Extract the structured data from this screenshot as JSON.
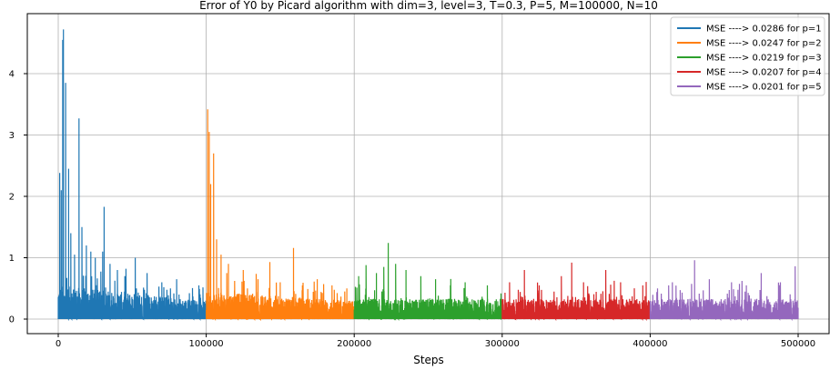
{
  "chart_data": {
    "type": "line",
    "title": "Error of Y0 by Picard algorithm with dim=3, level=3, T=0.3, P=5, M=100000, N=10",
    "xlabel": "Steps",
    "ylabel": "",
    "xlim": [
      -25000,
      520000
    ],
    "ylim": [
      -0.25,
      4.85
    ],
    "xticks": [
      0,
      100000,
      200000,
      300000,
      400000,
      500000
    ],
    "yticks": [
      0,
      1,
      2,
      3,
      4
    ],
    "grid": true,
    "legend_position": "top-right",
    "series": [
      {
        "name": "MSE ----> 0.0286 for p=1",
        "color": "#1f77b4",
        "x_start": 0,
        "x_end": 100000,
        "peaks": [
          [
            1000,
            2.38
          ],
          [
            2000,
            2.1
          ],
          [
            3000,
            4.55
          ],
          [
            3500,
            4.72
          ],
          [
            5000,
            3.85
          ],
          [
            7000,
            2.45
          ],
          [
            8500,
            1.4
          ],
          [
            11000,
            1.05
          ],
          [
            14000,
            3.27
          ],
          [
            16000,
            1.5
          ],
          [
            19000,
            1.2
          ],
          [
            22000,
            1.1
          ],
          [
            25000,
            1.0
          ],
          [
            30000,
            1.1
          ],
          [
            31000,
            1.83
          ],
          [
            35000,
            0.9
          ],
          [
            40000,
            0.8
          ],
          [
            45000,
            0.7
          ],
          [
            52000,
            1.0
          ],
          [
            60000,
            0.75
          ],
          [
            70000,
            0.6
          ],
          [
            80000,
            0.65
          ],
          [
            95000,
            0.55
          ]
        ]
      },
      {
        "name": "MSE ----> 0.0247 for p=2",
        "color": "#ff7f0e",
        "x_start": 100000,
        "x_end": 200000,
        "peaks": [
          [
            101000,
            3.42
          ],
          [
            102000,
            3.05
          ],
          [
            103000,
            2.2
          ],
          [
            105000,
            2.7
          ],
          [
            107000,
            1.3
          ],
          [
            110000,
            1.05
          ],
          [
            115000,
            0.9
          ],
          [
            125000,
            0.8
          ],
          [
            135000,
            0.65
          ],
          [
            143000,
            0.93
          ],
          [
            150000,
            0.6
          ],
          [
            159000,
            1.16
          ],
          [
            165000,
            0.55
          ],
          [
            175000,
            0.65
          ],
          [
            185000,
            0.55
          ],
          [
            195000,
            0.5
          ]
        ]
      },
      {
        "name": "MSE ----> 0.0219 for p=3",
        "color": "#2ca02c",
        "x_start": 200000,
        "x_end": 300000,
        "peaks": [
          [
            203000,
            0.7
          ],
          [
            208000,
            0.88
          ],
          [
            215000,
            0.75
          ],
          [
            220000,
            0.85
          ],
          [
            223000,
            1.24
          ],
          [
            228000,
            0.9
          ],
          [
            235000,
            0.8
          ],
          [
            245000,
            0.7
          ],
          [
            255000,
            0.65
          ],
          [
            265000,
            0.55
          ],
          [
            275000,
            0.6
          ],
          [
            290000,
            0.55
          ]
        ]
      },
      {
        "name": "MSE ----> 0.0207 for p=4",
        "color": "#d62728",
        "x_start": 300000,
        "x_end": 400000,
        "peaks": [
          [
            305000,
            0.6
          ],
          [
            315000,
            0.8
          ],
          [
            325000,
            0.55
          ],
          [
            340000,
            0.7
          ],
          [
            347000,
            0.92
          ],
          [
            355000,
            0.6
          ],
          [
            370000,
            0.8
          ],
          [
            380000,
            0.6
          ],
          [
            395000,
            0.55
          ]
        ]
      },
      {
        "name": "MSE ----> 0.0201 for p=5",
        "color": "#9467bd",
        "x_start": 400000,
        "x_end": 500000,
        "peaks": [
          [
            405000,
            0.5
          ],
          [
            415000,
            0.6
          ],
          [
            430000,
            0.96
          ],
          [
            440000,
            0.65
          ],
          [
            455000,
            0.6
          ],
          [
            465000,
            0.55
          ],
          [
            475000,
            0.75
          ],
          [
            488000,
            0.6
          ],
          [
            498000,
            0.86
          ]
        ]
      }
    ]
  }
}
